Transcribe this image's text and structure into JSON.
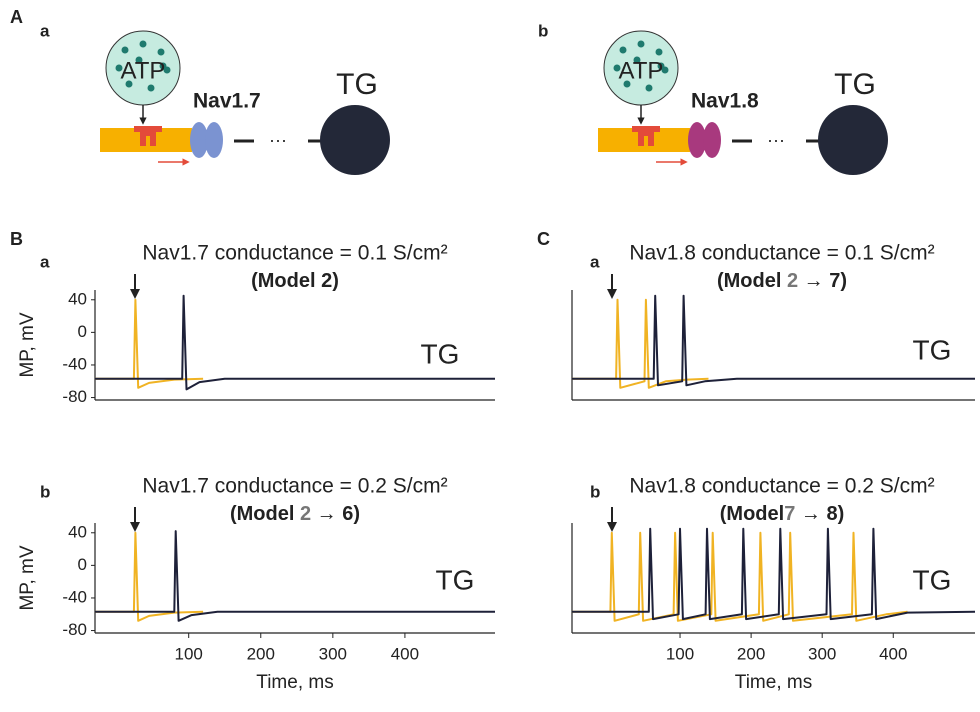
{
  "figure_labels": [
    "A",
    "B",
    "C"
  ],
  "diagrams": [
    {
      "label": "a",
      "ligand": "ATP",
      "channel": "Nav1.7",
      "channel_color": "#7b93d1",
      "label_color": "#6f8fd0",
      "ellipsis": "···",
      "target": "TG"
    },
    {
      "label": "b",
      "ligand": "ATP",
      "channel": "Nav1.8",
      "channel_color": "#a8397e",
      "label_color": "#a8397e",
      "ellipsis": "···",
      "target": "TG"
    }
  ],
  "chart_data": [
    {
      "type": "line",
      "label": "a",
      "title": "Nav1.7 conductance = 0.1 S/cm²",
      "subtitle": [
        {
          "text": "(Model 2)"
        }
      ],
      "annotation": "TG",
      "ylabel": "MP, mV",
      "xlim": [
        -30,
        525
      ],
      "ylim": [
        -83,
        52
      ],
      "yticks": [
        40,
        0,
        -40,
        -80
      ],
      "series": [
        {
          "color": "#f0b323",
          "x": [
            -30,
            24,
            26,
            30,
            45,
            80,
            120
          ],
          "values": [
            -57,
            -57,
            40,
            -68,
            -62,
            -58,
            -57
          ]
        },
        {
          "color": "#1e2139",
          "x": [
            -30,
            91,
            93,
            97,
            115,
            150,
            525
          ],
          "values": [
            -57,
            -57,
            45,
            -70,
            -61,
            -57,
            -57
          ]
        }
      ]
    },
    {
      "type": "line",
      "label": "b",
      "title": "Nav1.7 conductance = 0.2 S/cm²",
      "subtitle": [
        {
          "text": "(Model "
        },
        {
          "text": "2",
          "color": "#777777"
        },
        {
          "text": " → 6)"
        }
      ],
      "annotation": "TG",
      "ylabel": "MP, mV",
      "xlabel": "Time, ms",
      "xlim": [
        -30,
        525
      ],
      "ylim": [
        -83,
        52
      ],
      "yticks": [
        40,
        0,
        -40,
        -80
      ],
      "xticks": [
        100,
        200,
        300,
        400
      ],
      "series": [
        {
          "color": "#f0b323",
          "x": [
            -30,
            24,
            26,
            30,
            45,
            80,
            120
          ],
          "values": [
            -57,
            -57,
            40,
            -68,
            -62,
            -58,
            -57
          ]
        },
        {
          "color": "#1e2139",
          "x": [
            -30,
            80,
            82,
            86,
            104,
            140,
            525
          ],
          "values": [
            -57,
            -57,
            42,
            -68,
            -61,
            -57,
            -57
          ]
        }
      ]
    },
    {
      "type": "line",
      "label": "a",
      "title": "Nav1.8 conductance = 0.1 S/cm²",
      "subtitle": [
        {
          "text": "(Model "
        },
        {
          "text": "2",
          "color": "#777777"
        },
        {
          "text": " → 7)"
        }
      ],
      "annotation": "TG",
      "xlim": [
        -52,
        515
      ],
      "ylim": [
        -83,
        52
      ],
      "series": [
        {
          "color": "#f0b323",
          "x": [
            -52,
            10,
            12,
            16,
            50,
            52,
            56,
            80,
            110,
            140
          ],
          "values": [
            -57,
            -57,
            40,
            -68,
            -60,
            40,
            -68,
            -60,
            -58,
            -57
          ]
        },
        {
          "color": "#1e2139",
          "x": [
            -52,
            63,
            65,
            69,
            103,
            105,
            109,
            135,
            180,
            515
          ],
          "values": [
            -57,
            -57,
            45,
            -65,
            -60,
            45,
            -65,
            -60,
            -57,
            -57
          ]
        }
      ]
    },
    {
      "type": "line",
      "label": "b",
      "title": "Nav1.8 conductance = 0.2 S/cm²",
      "subtitle": [
        {
          "text": "(Model"
        },
        {
          "text": "7",
          "color": "#777777"
        },
        {
          "text": " → 8)"
        }
      ],
      "annotation": "TG",
      "xlabel": "Time, ms",
      "xlim": [
        -52,
        515
      ],
      "ylim": [
        -83,
        52
      ],
      "xticks": [
        100,
        200,
        300,
        400
      ],
      "series": [
        {
          "color": "#f0b323",
          "x": [
            -52,
            2,
            4,
            8,
            42,
            44,
            48,
            91,
            93,
            97,
            144,
            146,
            150,
            211,
            213,
            217,
            253,
            255,
            259,
            342,
            344,
            348,
            390,
            420
          ],
          "values": [
            -57,
            -57,
            40,
            -68,
            -60,
            40,
            -68,
            -60,
            40,
            -68,
            -60,
            40,
            -68,
            -60,
            40,
            -68,
            -60,
            40,
            -68,
            -60,
            40,
            -68,
            -60,
            -57
          ]
        },
        {
          "color": "#1e2139",
          "x": [
            -52,
            56,
            58,
            62,
            98,
            100,
            104,
            136,
            138,
            142,
            187,
            189,
            193,
            239,
            241,
            245,
            306,
            308,
            312,
            370,
            372,
            376,
            420,
            515
          ],
          "values": [
            -57,
            -57,
            45,
            -66,
            -60,
            45,
            -66,
            -60,
            45,
            -66,
            -60,
            45,
            -66,
            -60,
            45,
            -66,
            -60,
            45,
            -66,
            -60,
            45,
            -66,
            -58,
            -57
          ]
        }
      ]
    }
  ]
}
